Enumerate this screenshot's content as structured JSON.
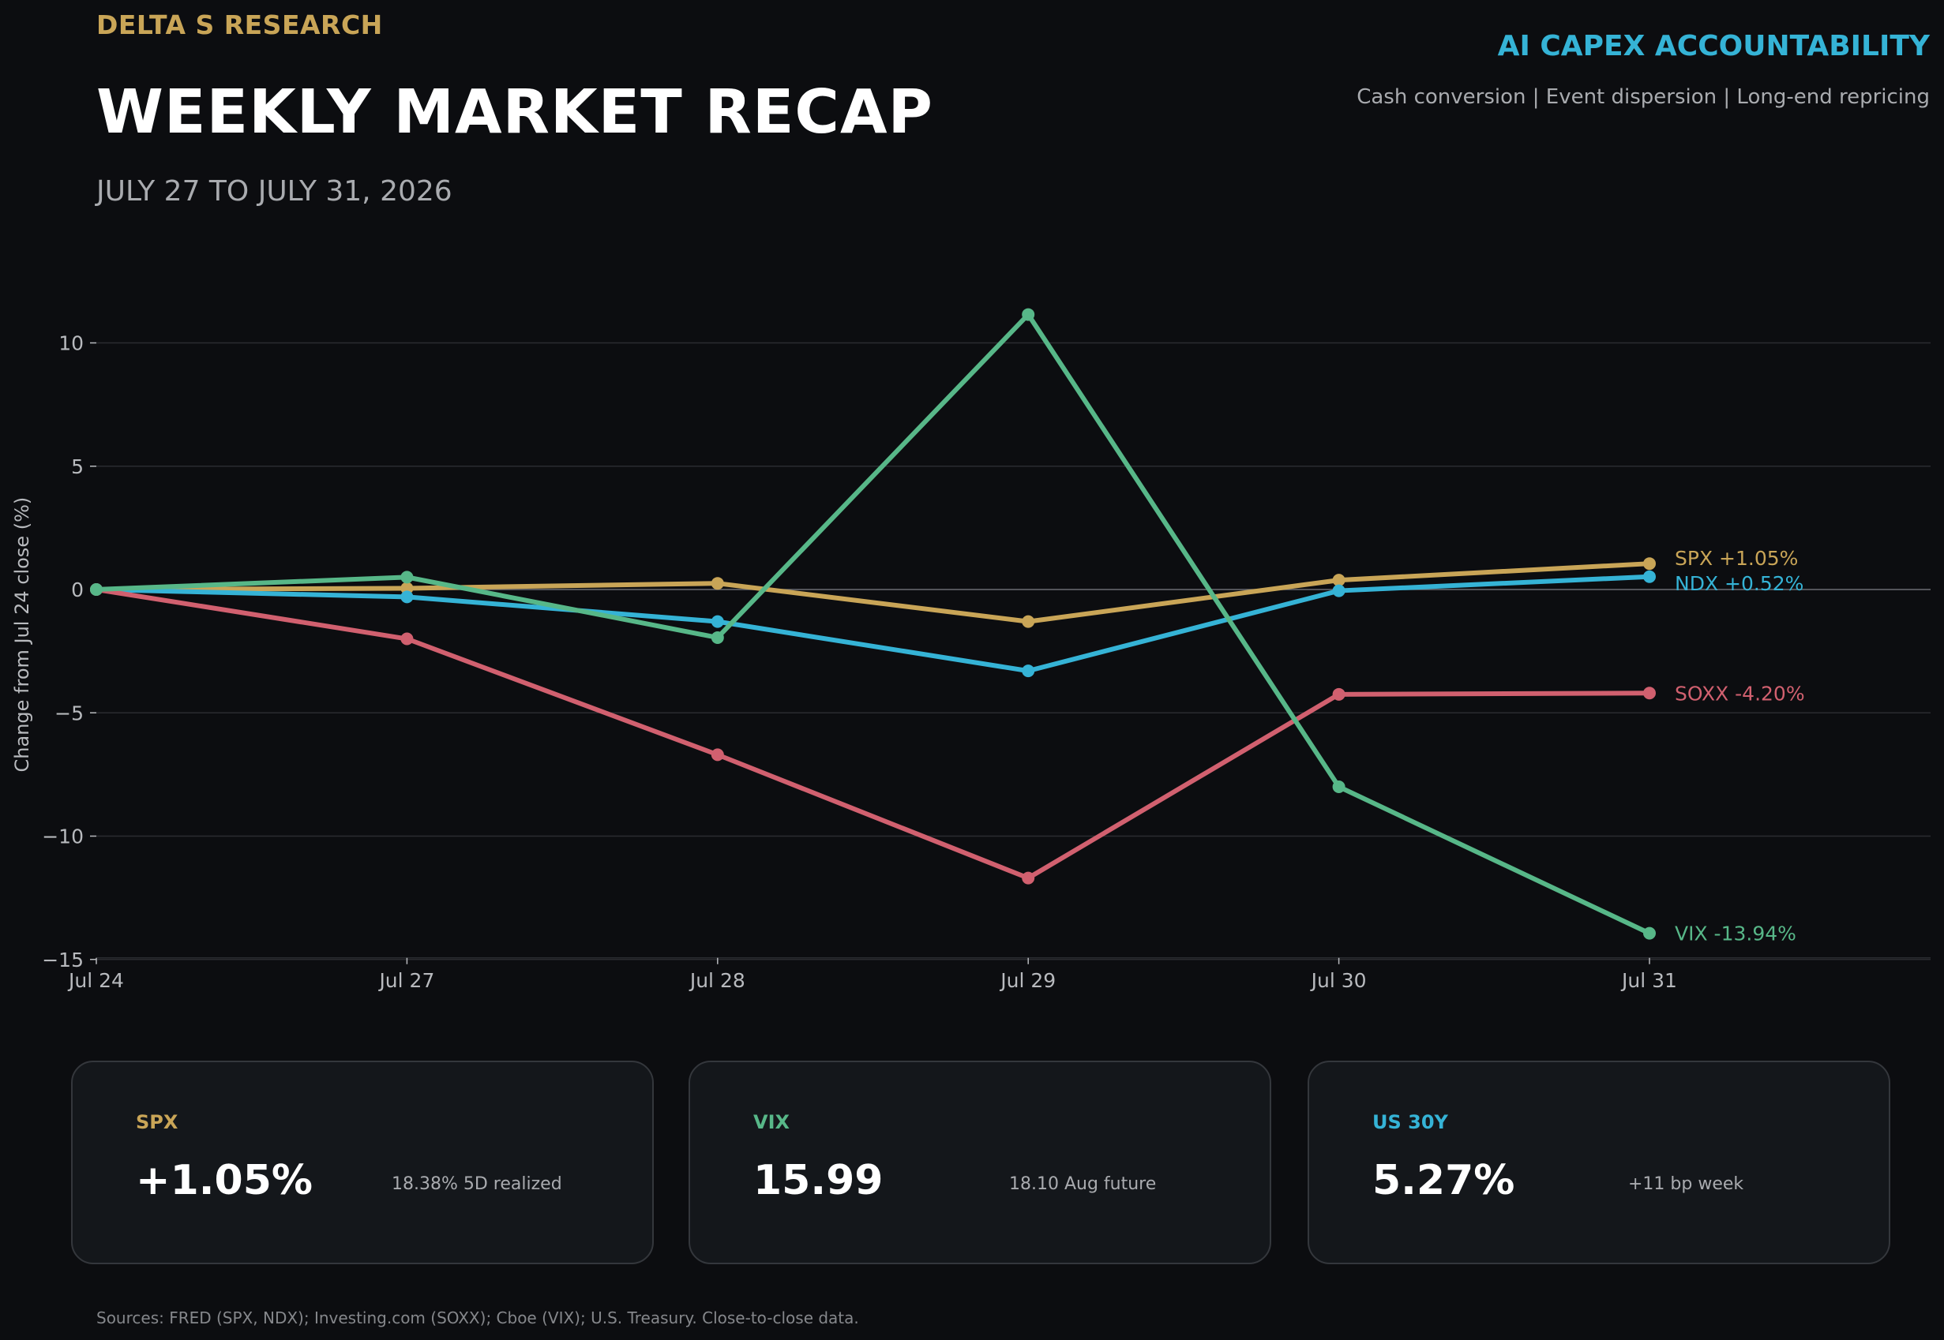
{
  "header": {
    "brand": "DELTA S RESEARCH",
    "title": "WEEKLY MARKET RECAP",
    "date_range": "JULY 27 TO JULY 31, 2026",
    "theme": "AI CAPEX ACCOUNTABILITY",
    "tagline": "Cash conversion | Event dispersion | Long-end repricing"
  },
  "colors": {
    "background": "#0c0d10",
    "spx": "#c9a557",
    "ndx": "#35b3d6",
    "soxx": "#d1606f",
    "vix": "#57b788",
    "grid": "#2a2c30",
    "zero_line": "#6b6d72",
    "axis_text": "#b8babe"
  },
  "chart_data": {
    "type": "line",
    "x": [
      "Jul 24",
      "Jul 27",
      "Jul 28",
      "Jul 29",
      "Jul 30",
      "Jul 31"
    ],
    "ylabel": "Change from Jul 24 close (%)",
    "ylim": [
      -15,
      14
    ],
    "yticks": [
      -15,
      -10,
      -5,
      0,
      5,
      10
    ],
    "ytick_labels": [
      "−15",
      "−10",
      "−5",
      "0",
      "5",
      "10"
    ],
    "grid": true,
    "series": [
      {
        "name": "SPX",
        "color": "#c9a557",
        "values": [
          0,
          0.05,
          0.25,
          -1.3,
          0.38,
          1.05
        ],
        "end_label": "SPX +1.05%"
      },
      {
        "name": "NDX",
        "color": "#35b3d6",
        "values": [
          0,
          -0.3,
          -1.3,
          -3.3,
          -0.05,
          0.52
        ],
        "end_label": "NDX +0.52%"
      },
      {
        "name": "SOXX",
        "color": "#d1606f",
        "values": [
          0,
          -2.0,
          -6.7,
          -11.7,
          -4.25,
          -4.2
        ],
        "end_label": "SOXX -4.20%"
      },
      {
        "name": "VIX",
        "color": "#57b788",
        "values": [
          0,
          0.5,
          -1.95,
          11.15,
          -8.0,
          -13.94
        ],
        "end_label": "VIX -13.94%"
      }
    ]
  },
  "cards": [
    {
      "label": "SPX",
      "label_color": "#c9a557",
      "value": "+1.05%",
      "note": "18.38% 5D realized"
    },
    {
      "label": "VIX",
      "label_color": "#57b788",
      "value": "15.99",
      "note": "18.10 Aug future"
    },
    {
      "label": "US 30Y",
      "label_color": "#35b3d6",
      "value": "5.27%",
      "note": "+11 bp week"
    }
  ],
  "footer": {
    "sources": "Sources: FRED (SPX, NDX); Investing.com (SOXX); Cboe (VIX); U.S. Treasury. Close-to-close data."
  }
}
